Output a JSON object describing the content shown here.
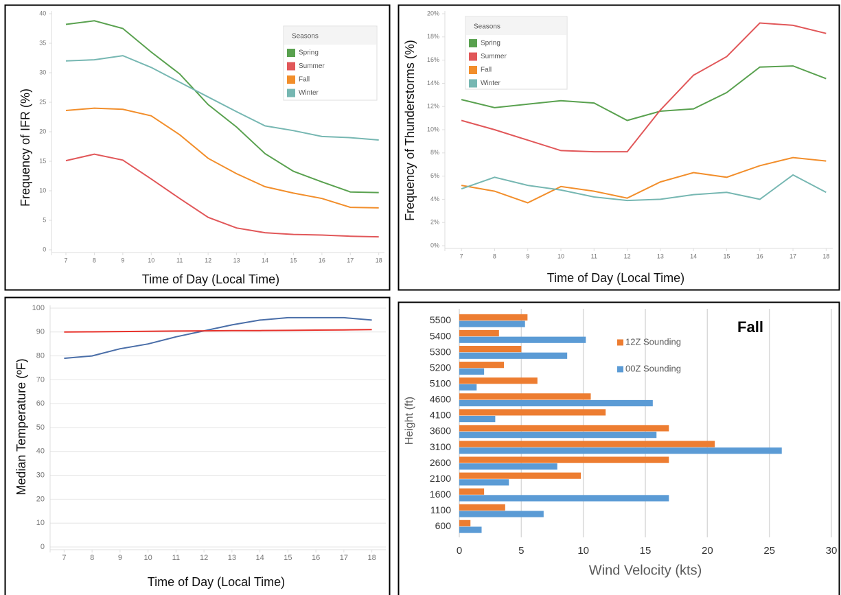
{
  "chart_data": [
    {
      "type": "line",
      "y_label": "Frequency of IFR (%)",
      "x_label": "Time of Day (Local Time)",
      "legend_title": "Seasons",
      "legend": "upper right",
      "grid": false,
      "x": [
        7,
        8,
        9,
        10,
        11,
        12,
        13,
        14,
        15,
        16,
        17,
        18
      ],
      "xlim": [
        6.5,
        18.2
      ],
      "xticks": [
        7,
        8,
        9,
        10,
        11,
        12,
        13,
        14,
        15,
        16,
        17,
        18
      ],
      "ylim": [
        0,
        40
      ],
      "yticks": [
        0,
        5,
        10,
        15,
        20,
        25,
        30,
        35,
        40
      ],
      "series": [
        {
          "name": "Spring",
          "color": "#59a14f",
          "values": [
            38.2,
            38.8,
            37.5,
            33.5,
            29.8,
            24.6,
            20.8,
            16.3,
            13.3,
            11.5,
            9.8,
            9.7
          ]
        },
        {
          "name": "Summer",
          "color": "#e15759",
          "values": [
            15.1,
            16.2,
            15.2,
            12.0,
            8.7,
            5.5,
            3.7,
            2.9,
            2.6,
            2.5,
            2.3,
            2.2
          ]
        },
        {
          "name": "Fall",
          "color": "#f28e2b",
          "values": [
            23.6,
            24.0,
            23.8,
            22.7,
            19.5,
            15.5,
            12.9,
            10.7,
            9.6,
            8.7,
            7.2,
            7.1
          ]
        },
        {
          "name": "Winter",
          "color": "#76b7b2",
          "values": [
            32.0,
            32.2,
            32.9,
            30.9,
            28.4,
            25.9,
            23.4,
            21.0,
            20.2,
            19.2,
            19.0,
            18.6
          ]
        }
      ]
    },
    {
      "type": "line",
      "y_label": "Frequency of Thunderstorms (%)",
      "x_label": "Time of Day (Local Time)",
      "legend_title": "Seasons",
      "legend": "upper left",
      "grid": false,
      "x": [
        7,
        8,
        9,
        10,
        11,
        12,
        13,
        14,
        15,
        16,
        17,
        18
      ],
      "xlim": [
        6.5,
        18.2
      ],
      "xticks": [
        7,
        8,
        9,
        10,
        11,
        12,
        13,
        14,
        15,
        16,
        17,
        18
      ],
      "ylim": [
        0,
        20
      ],
      "yticks": [
        {
          "value": 0,
          "label": "0%"
        },
        {
          "value": 2,
          "label": "2%"
        },
        {
          "value": 4,
          "label": "4%"
        },
        {
          "value": 6,
          "label": "6%"
        },
        {
          "value": 8,
          "label": "8%"
        },
        {
          "value": 10,
          "label": "10%"
        },
        {
          "value": 12,
          "label": "12%"
        },
        {
          "value": 14,
          "label": "14%"
        },
        {
          "value": 16,
          "label": "16%"
        },
        {
          "value": 18,
          "label": "18%"
        },
        {
          "value": 20,
          "label": "20%"
        }
      ],
      "series": [
        {
          "name": "Spring",
          "color": "#59a14f",
          "values": [
            12.6,
            11.9,
            12.2,
            12.5,
            12.3,
            10.8,
            11.6,
            11.8,
            13.2,
            15.4,
            15.5,
            14.4
          ]
        },
        {
          "name": "Summer",
          "color": "#e15759",
          "values": [
            10.8,
            10.0,
            9.1,
            8.2,
            8.1,
            8.1,
            11.7,
            14.7,
            16.3,
            19.2,
            19.0,
            18.3
          ]
        },
        {
          "name": "Fall",
          "color": "#f28e2b",
          "values": [
            5.2,
            4.7,
            3.7,
            5.1,
            4.7,
            4.1,
            5.5,
            6.3,
            5.9,
            6.9,
            7.6,
            7.3
          ]
        },
        {
          "name": "Winter",
          "color": "#76b7b2",
          "values": [
            4.9,
            5.9,
            5.2,
            4.8,
            4.2,
            3.9,
            4.0,
            4.4,
            4.6,
            4.0,
            6.1,
            4.6
          ]
        }
      ]
    },
    {
      "type": "line",
      "y_label": "Median Temperature (ºF)",
      "x_label": "Time of Day (Local Time)",
      "grid": true,
      "x": [
        7,
        8,
        9,
        10,
        11,
        12,
        13,
        14,
        15,
        16,
        17,
        18
      ],
      "xlim": [
        6.5,
        18.5
      ],
      "xticks": [
        7,
        8,
        9,
        10,
        11,
        12,
        13,
        14,
        15,
        16,
        17,
        18
      ],
      "ylim": [
        0,
        100
      ],
      "yticks": [
        0,
        10,
        20,
        30,
        40,
        50,
        60,
        70,
        80,
        90,
        100
      ],
      "series": [
        {
          "color": "#4a6ea8",
          "values": [
            79,
            80,
            83,
            85,
            88,
            90.5,
            93,
            95,
            96,
            96,
            96,
            95
          ]
        },
        {
          "color": "#e8322b",
          "values": [
            90,
            90.1,
            90.2,
            90.3,
            90.4,
            90.5,
            90.6,
            90.6,
            90.7,
            90.8,
            90.9,
            91.0
          ]
        }
      ]
    },
    {
      "type": "bar",
      "orientation": "horizontal",
      "title": "Fall",
      "y_label": "Height (ft)",
      "x_label": "Wind Velocity (kts)",
      "legend": "right",
      "grid": true,
      "categories": [
        "600",
        "1100",
        "1600",
        "2100",
        "2600",
        "3100",
        "3600",
        "4100",
        "4600",
        "5100",
        "5200",
        "5300",
        "5400",
        "5500"
      ],
      "xlim": [
        0,
        30
      ],
      "xticks": [
        0,
        5,
        10,
        15,
        20,
        25,
        30
      ],
      "series": [
        {
          "name": "12Z Sounding",
          "color": "#ed7d31",
          "values": [
            0.9,
            3.7,
            2.0,
            9.8,
            16.9,
            20.6,
            16.9,
            11.8,
            10.6,
            6.3,
            3.6,
            5.0,
            3.2,
            5.5
          ]
        },
        {
          "name": "00Z Sounding",
          "color": "#5b9bd5",
          "values": [
            1.8,
            6.8,
            16.9,
            4.0,
            7.9,
            26.0,
            15.9,
            2.9,
            15.6,
            1.4,
            2.0,
            8.7,
            10.2,
            5.3
          ]
        }
      ]
    }
  ]
}
